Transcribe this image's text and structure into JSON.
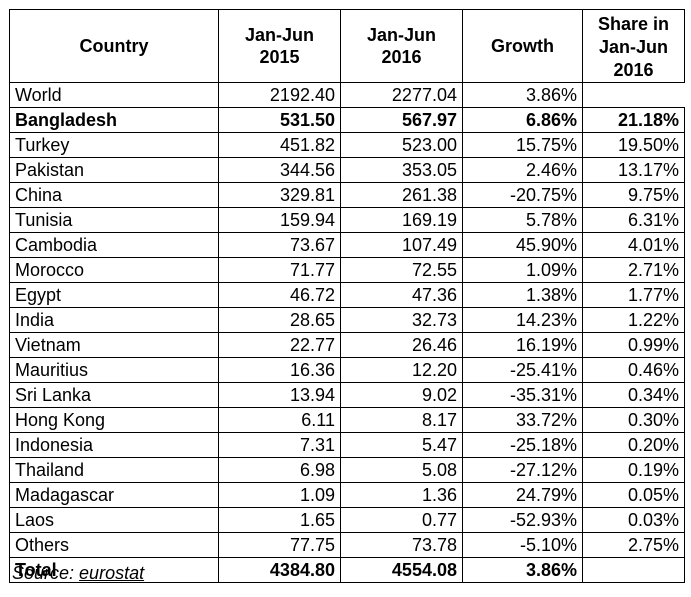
{
  "table": {
    "headers": {
      "country": "Country",
      "jan2015": [
        "Jan-Jun",
        "2015"
      ],
      "jan2016": [
        "Jan-Jun",
        "2016"
      ],
      "growth": "Growth",
      "share": [
        "Share in",
        "Jan-Jun",
        "2016"
      ]
    },
    "rows": [
      {
        "country": "World",
        "v2015": "2192.40",
        "v2016": "2277.04",
        "growth": "3.86%",
        "share": ""
      },
      {
        "country": "Bangladesh",
        "v2015": "531.50",
        "v2016": "567.97",
        "growth": "6.86%",
        "share": "21.18%"
      },
      {
        "country": "Turkey",
        "v2015": "451.82",
        "v2016": "523.00",
        "growth": "15.75%",
        "share": "19.50%"
      },
      {
        "country": "Pakistan",
        "v2015": "344.56",
        "v2016": "353.05",
        "growth": "2.46%",
        "share": "13.17%"
      },
      {
        "country": "China",
        "v2015": "329.81",
        "v2016": "261.38",
        "growth": "-20.75%",
        "share": "9.75%"
      },
      {
        "country": "Tunisia",
        "v2015": "159.94",
        "v2016": "169.19",
        "growth": "5.78%",
        "share": "6.31%"
      },
      {
        "country": "Cambodia",
        "v2015": "73.67",
        "v2016": "107.49",
        "growth": "45.90%",
        "share": "4.01%"
      },
      {
        "country": "Morocco",
        "v2015": "71.77",
        "v2016": "72.55",
        "growth": "1.09%",
        "share": "2.71%"
      },
      {
        "country": "Egypt",
        "v2015": "46.72",
        "v2016": "47.36",
        "growth": "1.38%",
        "share": "1.77%"
      },
      {
        "country": "India",
        "v2015": "28.65",
        "v2016": "32.73",
        "growth": "14.23%",
        "share": "1.22%"
      },
      {
        "country": "Vietnam",
        "v2015": "22.77",
        "v2016": "26.46",
        "growth": "16.19%",
        "share": "0.99%"
      },
      {
        "country": "Mauritius",
        "v2015": "16.36",
        "v2016": "12.20",
        "growth": "-25.41%",
        "share": "0.46%"
      },
      {
        "country": "Sri Lanka",
        "v2015": "13.94",
        "v2016": "9.02",
        "growth": "-35.31%",
        "share": "0.34%"
      },
      {
        "country": "Hong Kong",
        "v2015": "6.11",
        "v2016": "8.17",
        "growth": "33.72%",
        "share": "0.30%"
      },
      {
        "country": "Indonesia",
        "v2015": "7.31",
        "v2016": "5.47",
        "growth": "-25.18%",
        "share": "0.20%"
      },
      {
        "country": "Thailand",
        "v2015": "6.98",
        "v2016": "5.08",
        "growth": "-27.12%",
        "share": "0.19%"
      },
      {
        "country": "Madagascar",
        "v2015": "1.09",
        "v2016": "1.36",
        "growth": "24.79%",
        "share": "0.05%"
      },
      {
        "country": "Laos",
        "v2015": "1.65",
        "v2016": "0.77",
        "growth": "-52.93%",
        "share": "0.03%"
      },
      {
        "country": "Others",
        "v2015": "77.75",
        "v2016": "73.78",
        "growth": "-5.10%",
        "share": "2.75%"
      }
    ],
    "total": {
      "country": "Total",
      "v2015": "4384.80",
      "v2016": "4554.08",
      "growth": "3.86%",
      "share": ""
    }
  },
  "source": {
    "prefix": "Source: ",
    "name": "eurostat"
  }
}
